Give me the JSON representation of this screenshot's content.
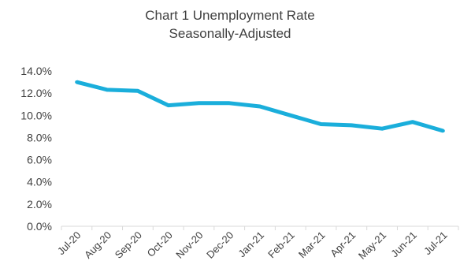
{
  "chart_data": {
    "type": "line",
    "title": "Chart 1 Unemployment Rate",
    "subtitle": "Seasonally-Adjusted",
    "xlabel": "",
    "ylabel": "",
    "categories": [
      "Jul-20",
      "Aug-20",
      "Sep-20",
      "Oct-20",
      "Nov-20",
      "Dec-20",
      "Jan-21",
      "Feb-21",
      "Mar-21",
      "Apr-21",
      "May-21",
      "Jun-21",
      "Jul-21"
    ],
    "series": [
      {
        "values": [
          13.0,
          12.3,
          12.2,
          10.9,
          11.1,
          11.1,
          10.8,
          10.0,
          9.2,
          9.1,
          8.8,
          9.4,
          8.6
        ]
      }
    ],
    "ylim": [
      0,
      14
    ],
    "yticks": [
      "0.0%",
      "2.0%",
      "4.0%",
      "6.0%",
      "8.0%",
      "10.0%",
      "12.0%",
      "14.0%"
    ],
    "grid": false,
    "colors": {
      "line": "#1AAEDB",
      "axis": "#d9d9d9",
      "text": "#404040"
    }
  }
}
